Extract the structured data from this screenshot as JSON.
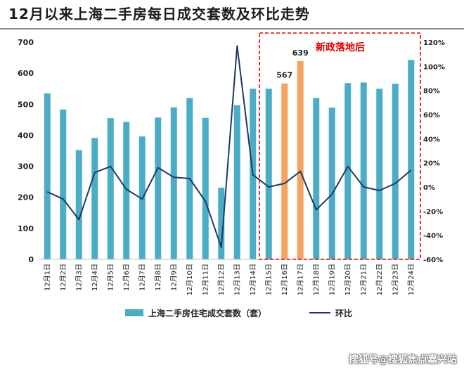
{
  "page": {
    "title": "12月以来上海二手房每日成交套数及环比走势",
    "watermark": "搜狐号@搜狐焦点嘉兴站"
  },
  "chart_data": {
    "type": "bar",
    "title": "12月以来上海二手房每日成交套数及环比走势",
    "categories": [
      "12月1日",
      "12月2日",
      "12月3日",
      "12月4日",
      "12月5日",
      "12月6日",
      "12月7日",
      "12月8日",
      "12月9日",
      "12月10日",
      "12月11日",
      "12月12日",
      "12月13日",
      "12月14日",
      "12月15日",
      "12月16日",
      "12月17日",
      "12月18日",
      "12月19日",
      "12月20日",
      "12月21日",
      "12月22日",
      "12月23日",
      "12月24日"
    ],
    "series": [
      {
        "name": "上海二手房住宅成交套数（套）",
        "type": "bar",
        "axis": "left",
        "values": [
          535,
          483,
          352,
          391,
          455,
          443,
          396,
          457,
          490,
          520,
          456,
          231,
          497,
          550,
          550,
          567,
          639,
          520,
          489,
          568,
          570,
          550,
          566,
          643
        ]
      },
      {
        "name": "环比",
        "type": "line",
        "axis": "right",
        "unit": "%",
        "values": [
          -4,
          -10,
          -27,
          12,
          17,
          -2,
          -10,
          16,
          8,
          7,
          -12,
          -50,
          117,
          10,
          0,
          3,
          13,
          -19,
          -6,
          17,
          0,
          -3,
          3,
          14
        ]
      }
    ],
    "left_axis": {
      "ylim": [
        0,
        700
      ],
      "ticks": [
        0,
        100,
        200,
        300,
        400,
        500,
        600,
        700
      ]
    },
    "right_axis": {
      "ylim": [
        -60,
        120
      ],
      "ticks": [
        -60,
        -40,
        -20,
        0,
        20,
        40,
        60,
        80,
        100,
        120
      ]
    },
    "highlight_indices": [
      15,
      16
    ],
    "bar_labels": [
      {
        "index": 15,
        "text": "567"
      },
      {
        "index": 16,
        "text": "639"
      }
    ],
    "annotation": {
      "text": "新政落地后",
      "range": [
        14,
        23
      ]
    },
    "colors": {
      "bar": "#4bacc6",
      "bar_highlight": "#f4a460",
      "line": "#1f3864",
      "annotation": "#e00000",
      "axis_text": "#222222"
    },
    "legend_position": "bottom-center"
  }
}
